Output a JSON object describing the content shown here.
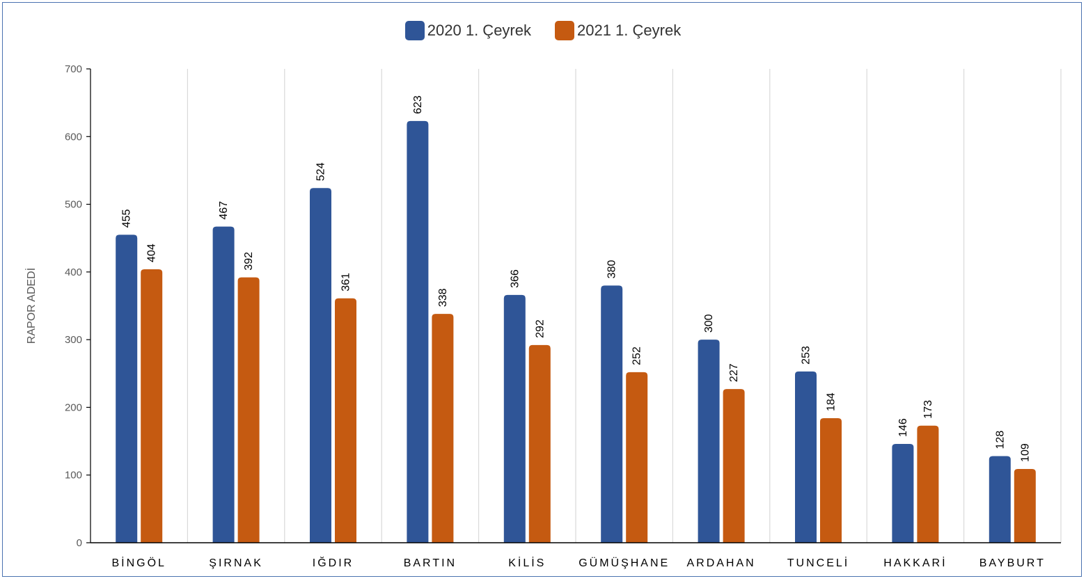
{
  "chart_data": {
    "type": "bar",
    "categories": [
      "BİNGÖL",
      "ŞIRNAK",
      "IĞDIR",
      "BARTIN",
      "KİLİS",
      "GÜMÜŞHANE",
      "ARDAHAN",
      "TUNCELİ",
      "HAKKARİ",
      "BAYBURT"
    ],
    "series": [
      {
        "name": "2020 1. Çeyrek",
        "color": "#2f5597",
        "values": [
          455,
          467,
          524,
          623,
          366,
          380,
          300,
          253,
          146,
          128
        ]
      },
      {
        "name": "2021 1. Çeyrek",
        "color": "#c55a11",
        "values": [
          404,
          392,
          361,
          338,
          292,
          252,
          227,
          184,
          173,
          109
        ]
      }
    ],
    "title": "",
    "xlabel": "",
    "ylabel": "RAPOR ADEDİ",
    "ylim": [
      0,
      700
    ],
    "yticks": [
      0,
      100,
      200,
      300,
      400,
      500,
      600,
      700
    ],
    "grid": "vertical category separators",
    "legend_position": "top-center",
    "data_labels": true
  }
}
